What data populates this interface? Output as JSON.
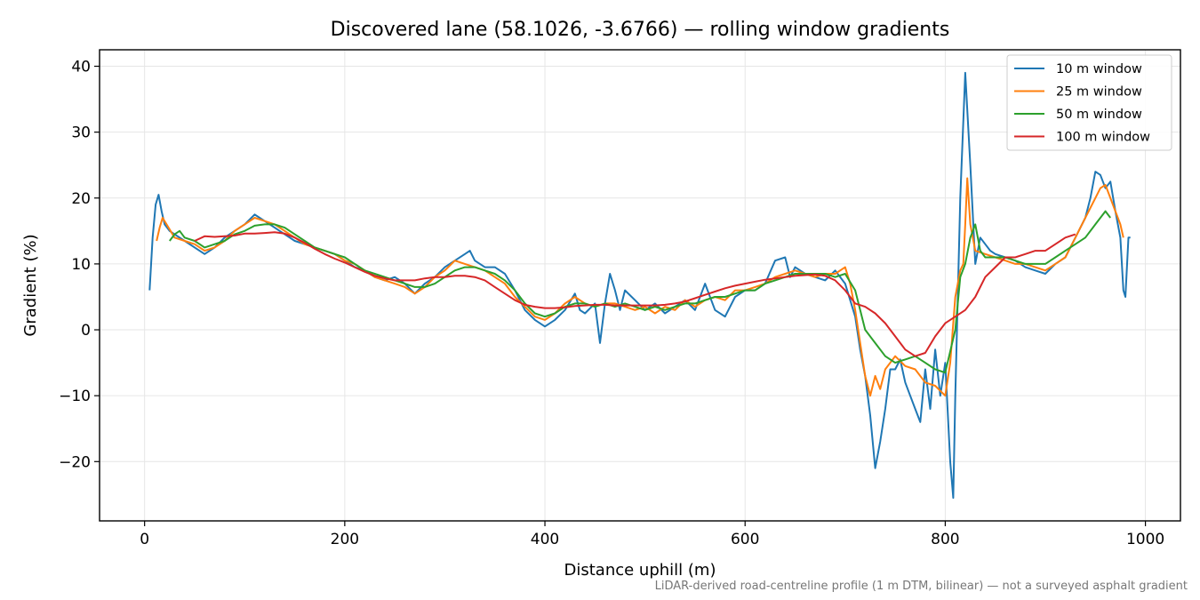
{
  "chart_data": {
    "type": "line",
    "title": "Discovered lane (58.1026, -3.6766) — rolling window gradients",
    "xlabel": "Distance uphill (m)",
    "ylabel": "Gradient (%)",
    "xlim": [
      -45,
      1035
    ],
    "ylim": [
      -29,
      42.5
    ],
    "xticks": [
      0,
      200,
      400,
      600,
      800,
      1000
    ],
    "yticks": [
      -20,
      -10,
      0,
      10,
      20,
      30,
      40
    ],
    "xtick_labels": [
      "0",
      "200",
      "400",
      "600",
      "800",
      "1000"
    ],
    "ytick_labels": [
      "−20",
      "−10",
      "0",
      "10",
      "20",
      "30",
      "40"
    ],
    "grid": true,
    "legend_position": "top-right",
    "series": [
      {
        "name": "10 m window",
        "color": "#1f77b4",
        "x": [
          5,
          8,
          11,
          14,
          17,
          20,
          25,
          30,
          40,
          50,
          60,
          70,
          80,
          90,
          100,
          110,
          115,
          120,
          130,
          140,
          150,
          160,
          170,
          180,
          190,
          200,
          210,
          220,
          230,
          240,
          250,
          260,
          270,
          280,
          290,
          300,
          310,
          320,
          325,
          330,
          340,
          350,
          360,
          370,
          380,
          390,
          400,
          410,
          420,
          430,
          435,
          440,
          450,
          455,
          460,
          465,
          470,
          475,
          480,
          490,
          500,
          510,
          520,
          530,
          540,
          550,
          560,
          570,
          580,
          590,
          600,
          610,
          620,
          630,
          640,
          645,
          650,
          660,
          670,
          680,
          690,
          700,
          710,
          715,
          720,
          725,
          730,
          735,
          740,
          745,
          750,
          755,
          760,
          765,
          770,
          775,
          780,
          785,
          790,
          795,
          800,
          805,
          808,
          810,
          815,
          820,
          825,
          830,
          835,
          840,
          845,
          850,
          860,
          870,
          880,
          890,
          900,
          910,
          920,
          930,
          940,
          945,
          950,
          955,
          960,
          965,
          970,
          975,
          978,
          980,
          983,
          985
        ],
        "y": [
          6,
          14,
          19,
          20.5,
          18,
          16,
          15,
          14.5,
          13.5,
          12.5,
          11.5,
          12.5,
          14,
          15,
          16,
          17.5,
          17,
          16.5,
          15.5,
          14.5,
          13.5,
          13,
          12.5,
          12,
          11.5,
          10.5,
          9.5,
          9,
          8,
          7.5,
          8,
          7,
          5.5,
          7,
          8,
          9.5,
          10.5,
          11.5,
          12,
          10.5,
          9.5,
          9.5,
          8.5,
          6,
          3,
          1.5,
          0.5,
          1.5,
          3,
          5.5,
          3,
          2.5,
          4,
          -2,
          4,
          8.5,
          6,
          3,
          6,
          4.5,
          3,
          4,
          2.5,
          3.5,
          4.5,
          3,
          7,
          3,
          2,
          5,
          6,
          6,
          7,
          10.5,
          11,
          8,
          9.5,
          8.5,
          8,
          7.5,
          9,
          7,
          2,
          -3,
          -7,
          -13,
          -21,
          -17,
          -12,
          -6,
          -6,
          -4.5,
          -8,
          -10,
          -12,
          -14,
          -6,
          -12,
          -3,
          -10,
          -5,
          -20,
          -25.5,
          -10,
          20,
          39,
          25,
          10,
          14,
          13,
          12,
          11.5,
          11,
          10.5,
          9.5,
          9,
          8.5,
          10,
          11,
          14,
          17,
          20,
          24,
          23.5,
          21.5,
          22.5,
          18,
          14,
          6,
          5,
          14,
          14
        ]
      },
      {
        "name": "25 m window",
        "color": "#ff7f0e",
        "x": [
          12,
          15,
          18,
          22,
          26,
          30,
          40,
          50,
          60,
          70,
          80,
          90,
          100,
          110,
          120,
          130,
          140,
          150,
          160,
          170,
          180,
          190,
          200,
          210,
          220,
          230,
          240,
          250,
          260,
          270,
          280,
          290,
          300,
          310,
          320,
          330,
          340,
          350,
          360,
          370,
          380,
          390,
          400,
          410,
          420,
          430,
          440,
          450,
          460,
          470,
          480,
          490,
          500,
          510,
          520,
          530,
          540,
          550,
          560,
          570,
          580,
          590,
          600,
          610,
          620,
          630,
          640,
          650,
          660,
          670,
          680,
          690,
          700,
          705,
          710,
          715,
          720,
          725,
          730,
          735,
          740,
          750,
          760,
          770,
          780,
          790,
          800,
          805,
          810,
          815,
          818,
          820,
          822,
          825,
          830,
          840,
          850,
          860,
          870,
          880,
          890,
          900,
          910,
          920,
          930,
          940,
          950,
          955,
          960,
          965,
          970,
          975,
          978
        ],
        "y": [
          13.5,
          15.5,
          17,
          16,
          15,
          14,
          13.5,
          13,
          12,
          12.5,
          13.5,
          15,
          16,
          17,
          16.5,
          16,
          15,
          14,
          13,
          12.5,
          12,
          11.5,
          10.5,
          10,
          9,
          8,
          7.5,
          7,
          6.5,
          5.5,
          6.5,
          8,
          9,
          10.5,
          10,
          9.5,
          9,
          8,
          7,
          5,
          3.5,
          2,
          1.5,
          2.5,
          4,
          5,
          4,
          3.5,
          4,
          4,
          3.5,
          3,
          3.5,
          2.5,
          3.5,
          3,
          4.5,
          3.5,
          4.5,
          5,
          4.5,
          6,
          6,
          6.5,
          7,
          8,
          8.5,
          9,
          8.5,
          8,
          8.5,
          8.5,
          9.5,
          7,
          3,
          -2,
          -7,
          -10,
          -7,
          -9,
          -6,
          -4,
          -5.5,
          -6,
          -8,
          -8.5,
          -10,
          -5,
          5,
          9,
          10,
          16,
          23,
          16,
          12,
          11.5,
          11,
          10.5,
          10,
          10,
          9.5,
          9,
          10,
          11,
          14,
          17,
          20,
          21.5,
          22,
          20,
          18,
          16,
          14
        ]
      },
      {
        "name": "50 m window",
        "color": "#2ca02c",
        "x": [
          25,
          30,
          35,
          40,
          50,
          60,
          70,
          80,
          90,
          100,
          110,
          120,
          130,
          140,
          150,
          160,
          170,
          180,
          190,
          200,
          210,
          220,
          230,
          240,
          250,
          260,
          270,
          280,
          290,
          300,
          310,
          320,
          330,
          340,
          350,
          360,
          370,
          380,
          390,
          400,
          410,
          420,
          430,
          440,
          450,
          460,
          470,
          480,
          490,
          500,
          510,
          520,
          530,
          540,
          550,
          560,
          570,
          580,
          590,
          600,
          610,
          620,
          630,
          640,
          650,
          660,
          670,
          680,
          690,
          700,
          710,
          715,
          720,
          730,
          740,
          750,
          760,
          770,
          780,
          790,
          800,
          810,
          815,
          820,
          825,
          830,
          835,
          840,
          850,
          860,
          870,
          880,
          890,
          900,
          910,
          920,
          930,
          940,
          950,
          960,
          965
        ],
        "y": [
          13.5,
          14.5,
          15,
          14,
          13.5,
          12.5,
          13,
          13.5,
          14.5,
          15,
          15.8,
          16,
          16,
          15.5,
          14.5,
          13.5,
          12.5,
          12,
          11.5,
          11,
          10,
          9,
          8.5,
          8,
          7.5,
          7,
          6.5,
          6.5,
          7,
          8,
          9,
          9.5,
          9.5,
          9,
          8.5,
          7.5,
          6,
          4,
          2.5,
          2,
          2.5,
          3.5,
          4,
          4,
          3.5,
          4,
          3.5,
          4,
          3.5,
          3,
          3.5,
          3,
          3.5,
          4,
          4,
          4.5,
          5,
          5,
          5.5,
          6,
          6,
          7,
          7.5,
          8,
          8.5,
          8.5,
          8.5,
          8.5,
          8,
          8.5,
          6,
          3,
          0,
          -2,
          -4,
          -5,
          -4.5,
          -4,
          -5,
          -6,
          -6.5,
          0,
          8,
          10,
          14,
          16,
          12,
          11,
          11,
          11,
          10.5,
          10,
          10,
          10,
          11,
          12,
          13,
          14,
          16,
          18,
          17
        ]
      },
      {
        "name": "100 m window",
        "color": "#d62728",
        "x": [
          50,
          60,
          70,
          80,
          90,
          100,
          110,
          120,
          130,
          140,
          150,
          160,
          170,
          180,
          190,
          200,
          210,
          220,
          230,
          240,
          250,
          260,
          270,
          280,
          290,
          300,
          310,
          320,
          330,
          340,
          350,
          360,
          370,
          380,
          390,
          400,
          410,
          420,
          430,
          440,
          450,
          460,
          470,
          480,
          490,
          500,
          510,
          520,
          530,
          540,
          550,
          560,
          570,
          580,
          590,
          600,
          610,
          620,
          630,
          640,
          650,
          660,
          670,
          680,
          690,
          700,
          710,
          720,
          730,
          740,
          750,
          760,
          770,
          780,
          790,
          800,
          810,
          820,
          830,
          840,
          850,
          860,
          870,
          880,
          890,
          900,
          910,
          920,
          930
        ],
        "y": [
          13.5,
          14.2,
          14.1,
          14.2,
          14.3,
          14.6,
          14.6,
          14.7,
          14.8,
          14.6,
          14,
          13.2,
          12.3,
          11.5,
          10.8,
          10.2,
          9.5,
          8.8,
          8.2,
          7.8,
          7.5,
          7.5,
          7.5,
          7.8,
          8,
          8,
          8.2,
          8.2,
          8,
          7.5,
          6.5,
          5.5,
          4.5,
          3.8,
          3.5,
          3.3,
          3.3,
          3.4,
          3.6,
          3.7,
          3.8,
          3.8,
          3.7,
          3.7,
          3.7,
          3.7,
          3.7,
          3.8,
          4,
          4.3,
          4.8,
          5.3,
          5.8,
          6.3,
          6.7,
          7,
          7.3,
          7.6,
          7.8,
          8,
          8.2,
          8.3,
          8.4,
          8.2,
          7.5,
          6,
          4,
          3.5,
          2.5,
          1,
          -1,
          -3,
          -4,
          -3.5,
          -1,
          1,
          2,
          3,
          5,
          8,
          9.5,
          11,
          11,
          11.5,
          12,
          12,
          13,
          14,
          14.5
        ]
      }
    ]
  },
  "footnote": "LiDAR-derived road-centreline profile (1 m DTM, bilinear) — not a surveyed asphalt gradient"
}
